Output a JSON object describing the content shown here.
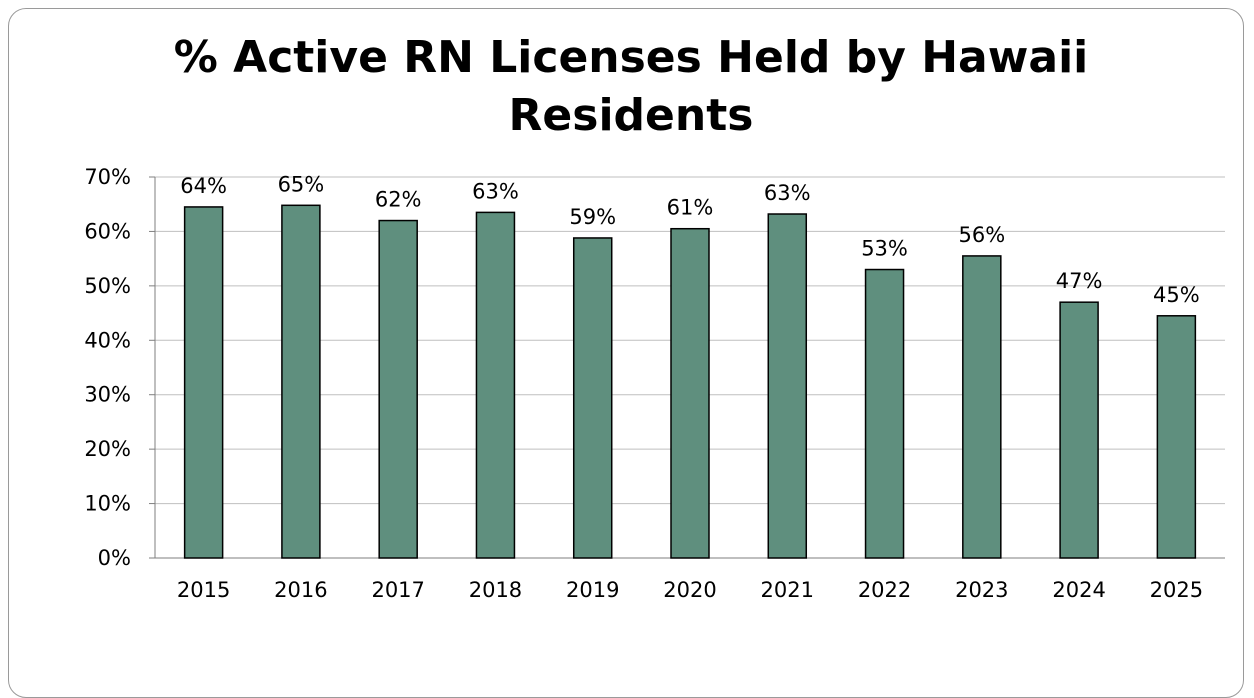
{
  "chart_data": {
    "type": "bar",
    "title": "% Active RN Licenses Held by Hawaii Residents",
    "title_lines": [
      "% Active RN Licenses Held by Hawaii",
      "Residents"
    ],
    "categories": [
      "2015",
      "2016",
      "2017",
      "2018",
      "2019",
      "2020",
      "2021",
      "2022",
      "2023",
      "2024",
      "2025"
    ],
    "values": [
      64.5,
      64.8,
      62,
      63.5,
      58.8,
      60.5,
      63.2,
      53,
      55.5,
      47,
      44.5
    ],
    "data_labels": [
      "64%",
      "65%",
      "62%",
      "63%",
      "59%",
      "61%",
      "63%",
      "53%",
      "56%",
      "47%",
      "45%"
    ],
    "y_ticks": [
      0,
      10,
      20,
      30,
      40,
      50,
      60,
      70
    ],
    "y_tick_labels": [
      "0%",
      "10%",
      "20%",
      "30%",
      "40%",
      "50%",
      "60%",
      "70%"
    ],
    "ylim": [
      0,
      70
    ],
    "xlabel": "",
    "ylabel": "",
    "grid": true,
    "legend": "none",
    "bar_color": "#5f8f7e",
    "bar_edge_color": "#000000",
    "grid_color": "#bfbfbf"
  }
}
